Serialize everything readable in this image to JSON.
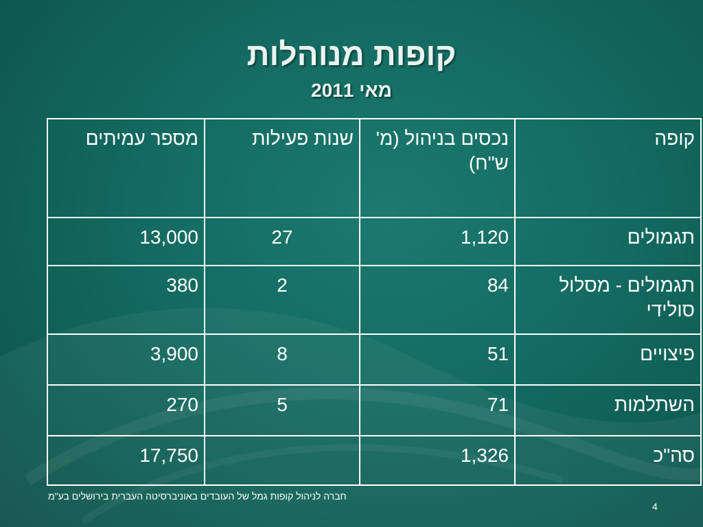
{
  "slide": {
    "title": "קופות מנוהלות",
    "subtitle": "מאי 2011",
    "footer": "חברה לניהול קופות גמל של העובדים באוניברסיטה העברית בירושלים בע\"מ",
    "page_number": "4"
  },
  "table": {
    "headers": {
      "fund": "קופה",
      "assets": "נכסים בניהול (מ' ש\"ח)",
      "years": "שנות פעילות",
      "members": "מספר עמיתים"
    },
    "rows": [
      {
        "fund": "תגמולים",
        "assets": "1,120",
        "years": "27",
        "members": "13,000"
      },
      {
        "fund": "תגמולים - מסלול סולידי",
        "assets": "84",
        "years": "2",
        "members": "380"
      },
      {
        "fund": "פיצויים",
        "assets": "51",
        "years": "8",
        "members": "3,900"
      },
      {
        "fund": "השתלמות",
        "assets": "71",
        "years": "5",
        "members": "270"
      },
      {
        "fund": "סה\"כ",
        "assets": "1,326",
        "years": "",
        "members": "17,750"
      }
    ]
  },
  "colors": {
    "background": "#136a60",
    "text": "#ffffff",
    "title": "#eaf2ef"
  }
}
